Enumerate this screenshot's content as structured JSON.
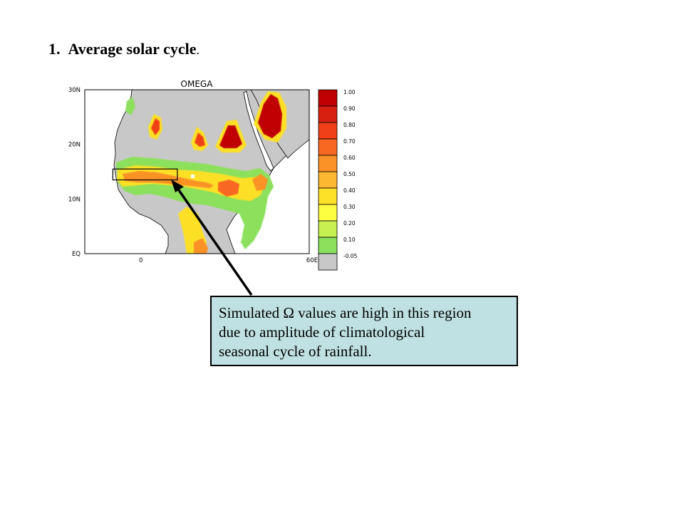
{
  "heading": {
    "number": "1.",
    "title": "Average solar cycle",
    "period": "."
  },
  "map": {
    "title": "OMEGA",
    "lat_labels": [
      "30N",
      "20N",
      "10N",
      "EQ"
    ],
    "lon_labels": [
      "0",
      "60E"
    ],
    "region_box": {
      "lon_range": [
        -10,
        13
      ],
      "lat_range": [
        13.5,
        15.5
      ]
    }
  },
  "legend": {
    "levels": [
      {
        "label": "1.00",
        "color": "#c00000"
      },
      {
        "label": "0.90",
        "color": "#d82010"
      },
      {
        "label": "0.80",
        "color": "#f04018"
      },
      {
        "label": "0.70",
        "color": "#f86820"
      },
      {
        "label": "0.60",
        "color": "#fa9228"
      },
      {
        "label": "0.50",
        "color": "#fcb830"
      },
      {
        "label": "0.40",
        "color": "#fde028"
      },
      {
        "label": "0.30",
        "color": "#fefe40"
      },
      {
        "label": "0.20",
        "color": "#c8f050"
      },
      {
        "label": "0.10",
        "color": "#8ce05c"
      },
      {
        "label": "-0.05",
        "color": "#c8c8c8"
      }
    ]
  },
  "callout": {
    "lines": [
      "Simulated Ω values are high in this region",
      "due to amplitude of climatological",
      "seasonal cycle of rainfall."
    ]
  }
}
